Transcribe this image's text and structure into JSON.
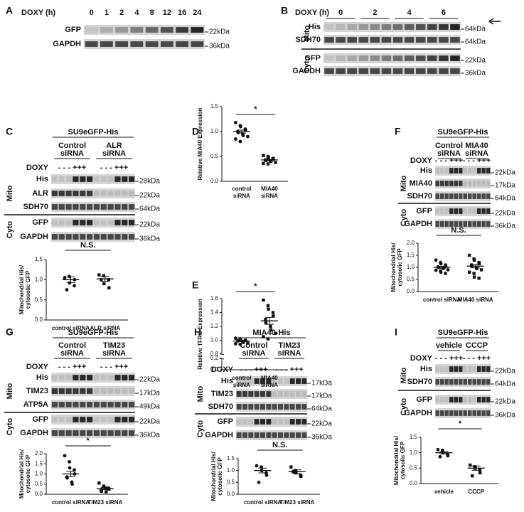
{
  "panels": [
    {
      "letter": "A",
      "header": "DOXY (h)",
      "lanes": [
        "0",
        "1",
        "2",
        "4",
        "8",
        "12",
        "16",
        "24"
      ],
      "rows": [
        "GFP",
        "GAPDH"
      ],
      "markers": [
        "22kDa",
        "36kDa"
      ]
    },
    {
      "letter": "B",
      "header": "DOXY (h)",
      "lanes": [
        "0",
        "2",
        "4",
        "6"
      ],
      "fractions": [
        "Mito",
        "Cyto"
      ],
      "rows": [
        "His",
        "SDH70",
        "GFP",
        "GAPDH"
      ],
      "markers": [
        "64kDa",
        "64kDa",
        "22kDa",
        "36kDa"
      ]
    },
    {
      "letter": "C",
      "construct": "SU9eGFP-His",
      "groups": [
        [
          "Control",
          "siRNA"
        ],
        [
          "ALR",
          "siRNA"
        ]
      ],
      "header": "DOXY",
      "lanes": [
        "- - - +++",
        "- - - +++"
      ],
      "fractions": [
        "Mito",
        "Cyto"
      ],
      "rows": [
        "His",
        "ALR",
        "SDH70",
        "GFP",
        "GAPDH"
      ],
      "markers": [
        "28kDa",
        "22kDa",
        "64kDa",
        "22kDa",
        "36kDa"
      ]
    },
    {
      "letter": "D"
    },
    {
      "letter": "E"
    },
    {
      "letter": "F",
      "construct": "SU9eGFP-His",
      "groups": [
        [
          "Control",
          "siRNA"
        ],
        [
          "MIA40",
          "siRNA"
        ]
      ],
      "header": "DOXY",
      "lanes": [
        "- - - +++",
        "- - - +++"
      ],
      "fractions": [
        "Mito",
        "Cyto"
      ],
      "rows": [
        "His",
        "MIA40",
        "SDH70",
        "GFP",
        "GAPDH"
      ],
      "markers": [
        "22kDa",
        "17kDa",
        "64kDa",
        "22kDa",
        "36kDa"
      ]
    },
    {
      "letter": "G",
      "construct": "SU9eGFP-His",
      "groups": [
        [
          "Control",
          "siRNA"
        ],
        [
          "TIM23",
          "siRNA"
        ]
      ],
      "header": "DOXY",
      "lanes": [
        "- - - +++",
        "- - - +++"
      ],
      "fractions": [
        "Mito",
        "Cyto"
      ],
      "rows": [
        "His",
        "TIM23",
        "ATP5A",
        "GFP",
        "GAPDH"
      ],
      "markers": [
        "22kDa",
        "17kDa",
        "49kDa",
        "22kDa",
        "36kDa"
      ]
    },
    {
      "letter": "H",
      "construct": "MIA40-His",
      "groups": [
        [
          "Control",
          "siRNA"
        ],
        [
          "TIM23",
          "siRNA"
        ]
      ],
      "header": "DOXY",
      "lanes": [
        "- - - +++",
        "- - - +++"
      ],
      "fractions": [
        "Mito",
        "Cyto"
      ],
      "rows": [
        "His",
        "TIM23",
        "SDH70",
        "GFP",
        "GAPDH"
      ],
      "markers": [
        "17kDa",
        "17kDa",
        "64kDa",
        "22kDa",
        "36kDa"
      ]
    },
    {
      "letter": "I",
      "construct": "SU9eGFP-His",
      "groups": [
        [
          "vehicle"
        ],
        [
          "CCCP"
        ]
      ],
      "header": "DOXY",
      "lanes": [
        "- - - +++",
        "- - - +++"
      ],
      "fractions": [
        "Mito",
        "Cyto"
      ],
      "rows": [
        "His",
        "SDH70",
        "GFP",
        "GAPDH"
      ],
      "markers": [
        "22kDa",
        "64kDa",
        "22kDa",
        "36kDa"
      ]
    }
  ],
  "chart_data": [
    {
      "type": "strip",
      "ylabel": [
        "Mitochondrial His/",
        "cytosolic GFP"
      ],
      "categories": [
        "control siRNA",
        "ALR siRNA"
      ],
      "values": [
        [
          1.05,
          1.08,
          0.92,
          0.85,
          1.0,
          0.75
        ],
        [
          1.12,
          1.1,
          0.9,
          1.0,
          0.8,
          1.0
        ]
      ],
      "means": [
        1.0,
        1.02
      ],
      "errors": [
        0.07,
        0.06
      ],
      "ylim": [
        0,
        1.5
      ],
      "yticks": [
        {
          "value": 0,
          "label": "0.0"
        },
        0.5,
        {
          "value": 1,
          "label": "1.0"
        },
        1.5
      ],
      "annotation": "N.S."
    },
    {
      "type": "strip",
      "ylabel": "Relative MIA40 Expression",
      "categories": [
        [
          "control",
          "siRNA"
        ],
        [
          "MIA40",
          "siRNA"
        ]
      ],
      "values": [
        [
          1.18,
          1.12,
          1.1,
          1.05,
          1.03,
          1.0,
          0.98,
          0.95,
          0.92,
          0.9,
          0.85,
          0.8
        ],
        [
          0.52,
          0.5,
          0.48,
          0.46,
          0.45,
          0.43,
          0.42,
          0.41,
          0.4,
          0.38,
          0.36,
          0.35
        ]
      ],
      "means": [
        1.0,
        0.43
      ],
      "errors": [
        0.03,
        0.015
      ],
      "ylim": [
        0,
        1.5
      ],
      "yticks": [
        {
          "value": 0,
          "label": "0.0"
        },
        0.5,
        {
          "value": 1,
          "label": "1.0"
        },
        1.5
      ],
      "annotation": "*"
    },
    {
      "type": "strip",
      "ylabel": "Relative TFRC Expression",
      "categories": [
        [
          "control",
          "siRNA"
        ],
        [
          "MIA40",
          "siRNA"
        ]
      ],
      "values": [
        [
          1.03,
          1.02,
          1.01,
          1.0,
          1.0,
          0.99,
          0.99,
          0.98,
          0.97,
          0.96,
          0.95,
          0.94
        ],
        [
          1.58,
          1.5,
          1.45,
          1.4,
          1.35,
          1.3,
          1.25,
          1.2,
          1.15,
          1.1,
          1.05,
          1.02
        ]
      ],
      "means": [
        0.99,
        1.28
      ],
      "errors": [
        0.01,
        0.05
      ],
      "ylim": [
        0.8,
        1.6
      ],
      "ylim_low": [
        0,
        0.2
      ],
      "yticks": [
        {
          "value": 0,
          "label": "0.0"
        },
        0.2,
        0.8,
        {
          "value": 1,
          "label": "1.0"
        },
        1.2,
        1.4,
        1.6
      ],
      "annotation": "*"
    },
    {
      "type": "strip",
      "ylabel": [
        "Mitochondrial His/",
        "cytosolic GFP"
      ],
      "categories": [
        "control siRNA",
        "MIA40 siRNA"
      ],
      "values": [
        [
          1.3,
          1.2,
          1.15,
          1.1,
          1.05,
          1.02,
          1.0,
          0.98,
          0.95,
          0.9,
          0.88,
          0.85,
          0.8,
          0.75
        ],
        [
          1.5,
          1.35,
          1.3,
          1.2,
          1.15,
          1.1,
          1.05,
          1.0,
          0.95,
          0.9,
          0.8,
          0.75,
          0.6,
          0.55
        ]
      ],
      "means": [
        1.0,
        1.05
      ],
      "errors": [
        0.04,
        0.07
      ],
      "ylim": [
        0,
        2
      ],
      "yticks": [
        {
          "value": 0,
          "label": "0.0"
        },
        0.5,
        {
          "value": 1,
          "label": "1.0"
        },
        1.5,
        {
          "value": 2,
          "label": "2.0"
        }
      ],
      "annotation": "N.S."
    },
    {
      "type": "strip",
      "ylabel": [
        "Mitochondrial His/",
        "cytosolic GFP"
      ],
      "categories": [
        "control siRNA",
        "TIM23 siRNA"
      ],
      "values": [
        [
          1.9,
          1.6,
          1.3,
          1.2,
          1.0,
          0.85,
          0.8,
          0.6,
          0.5
        ],
        [
          0.55,
          0.4,
          0.35,
          0.3,
          0.25,
          0.2,
          0.15,
          0.12,
          0.3
        ]
      ],
      "means": [
        1.0,
        0.28
      ],
      "errors": [
        0.13,
        0.05
      ],
      "ylim": [
        0,
        2
      ],
      "yticks": [
        {
          "value": 0,
          "label": "0.0"
        },
        0.5,
        {
          "value": 1,
          "label": "1.0"
        },
        1.5,
        {
          "value": 2,
          "label": "2.0"
        }
      ],
      "annotation": "*"
    },
    {
      "type": "strip",
      "ylabel": [
        "Mitochondrial His/",
        "cytosolic GFP"
      ],
      "categories": [
        "control siRNA",
        "TIM23 siRNA"
      ],
      "values": [
        [
          1.2,
          1.15,
          1.0,
          0.9,
          0.8,
          0.5
        ],
        [
          1.15,
          1.0,
          0.9,
          0.8,
          0.75,
          0.95
        ]
      ],
      "means": [
        1.0,
        0.95
      ],
      "errors": [
        0.1,
        0.08
      ],
      "ylim": [
        0,
        1.5
      ],
      "yticks": [
        {
          "value": 0,
          "label": "0.0"
        },
        0.5,
        {
          "value": 1,
          "label": "1.0"
        },
        1.5
      ],
      "annotation": "N.S."
    },
    {
      "type": "strip",
      "ylabel": [
        "Mitochondrial His/",
        "cytosolic GFP"
      ],
      "categories": [
        "vehicle",
        "CCCP"
      ],
      "values": [
        [
          1.1,
          1.08,
          1.0,
          0.95,
          0.9,
          0.87
        ],
        [
          0.6,
          0.55,
          0.5,
          0.45,
          0.35,
          0.25
        ]
      ],
      "means": [
        1.0,
        0.5
      ],
      "errors": [
        0.04,
        0.07
      ],
      "ylim": [
        0,
        1.5
      ],
      "yticks": [
        {
          "value": 0,
          "label": "0.0"
        },
        0.5,
        {
          "value": 1,
          "label": "1.0"
        },
        1.5
      ],
      "annotation": "*"
    }
  ]
}
